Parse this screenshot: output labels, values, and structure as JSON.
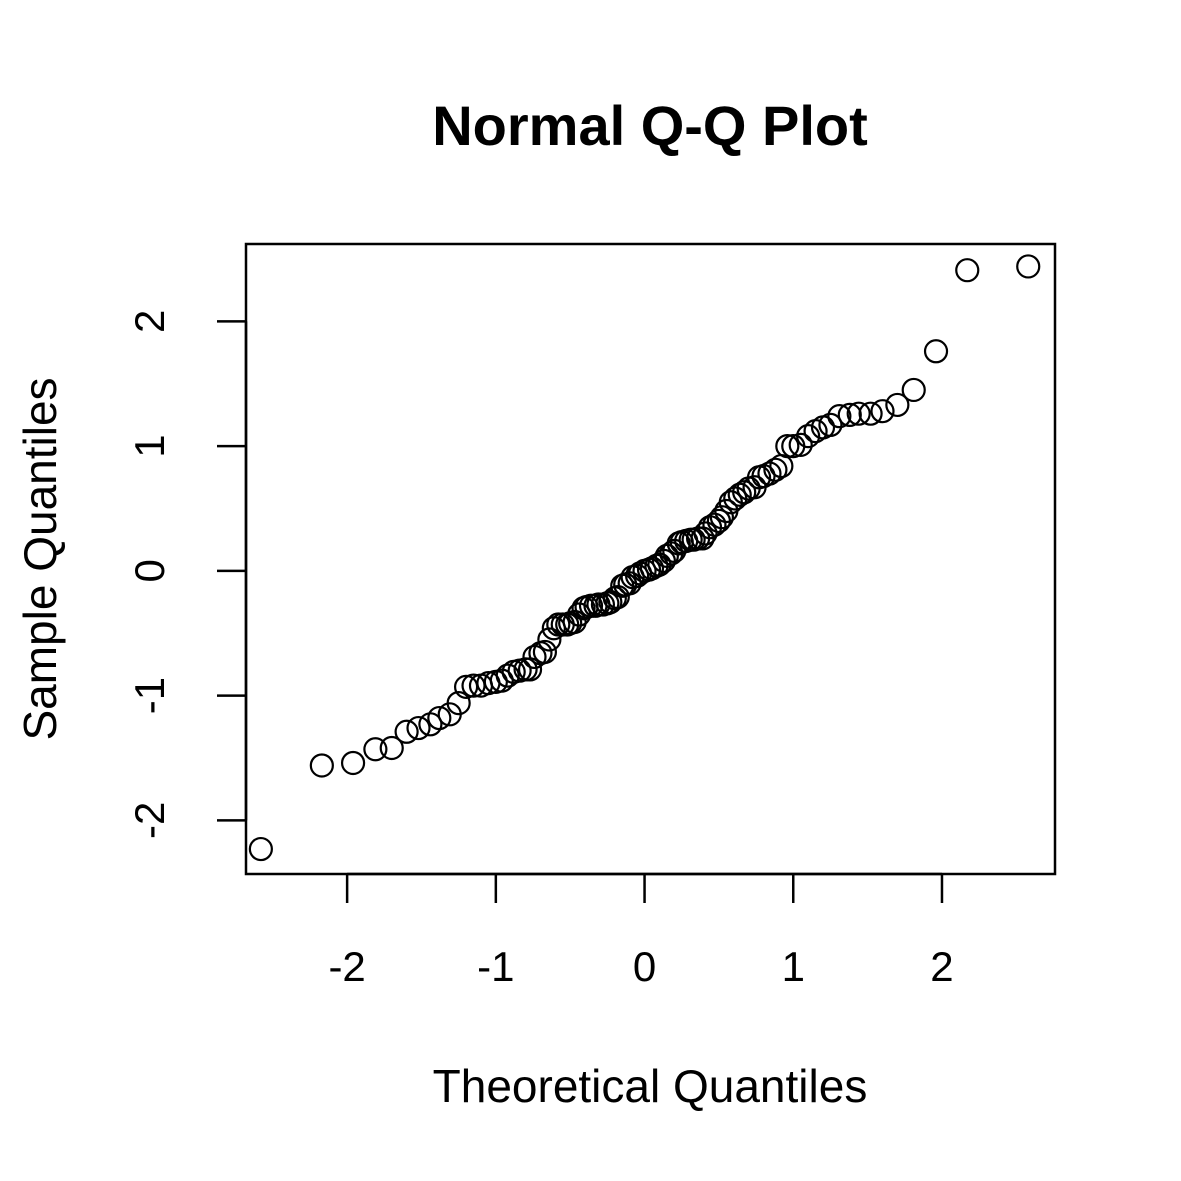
{
  "chart_data": {
    "type": "scatter",
    "title": "Normal Q-Q Plot",
    "xlabel": "Theoretical Quantiles",
    "ylabel": "Sample Quantiles",
    "xlim": [
      -2.68,
      2.76
    ],
    "ylim": [
      -2.43,
      2.62
    ],
    "x_ticks": [
      -2,
      -1,
      0,
      1,
      2
    ],
    "y_ticks": [
      -2,
      -1,
      0,
      1,
      2
    ],
    "x_tick_labels": [
      "-2",
      "-1",
      "0",
      "1",
      "2"
    ],
    "y_tick_labels": [
      "-2",
      "-1",
      "0",
      "1",
      "2"
    ],
    "marker": "open-circle",
    "grid": false,
    "points": [
      [
        -2.58,
        -2.23
      ],
      [
        -2.17,
        -1.56
      ],
      [
        -1.96,
        -1.54
      ],
      [
        -1.81,
        -1.43
      ],
      [
        -1.7,
        -1.42
      ],
      [
        -1.6,
        -1.29
      ],
      [
        -1.52,
        -1.26
      ],
      [
        -1.44,
        -1.23
      ],
      [
        -1.38,
        -1.18
      ],
      [
        -1.31,
        -1.15
      ],
      [
        -1.25,
        -1.06
      ],
      [
        -1.2,
        -0.93
      ],
      [
        -1.15,
        -0.92
      ],
      [
        -1.1,
        -0.92
      ],
      [
        -1.05,
        -0.9
      ],
      [
        -1.0,
        -0.89
      ],
      [
        -0.96,
        -0.88
      ],
      [
        -0.92,
        -0.84
      ],
      [
        -0.88,
        -0.81
      ],
      [
        -0.84,
        -0.8
      ],
      [
        -0.8,
        -0.79
      ],
      [
        -0.77,
        -0.79
      ],
      [
        -0.74,
        -0.69
      ],
      [
        -0.7,
        -0.66
      ],
      [
        -0.67,
        -0.65
      ],
      [
        -0.64,
        -0.55
      ],
      [
        -0.61,
        -0.46
      ],
      [
        -0.58,
        -0.43
      ],
      [
        -0.55,
        -0.43
      ],
      [
        -0.52,
        -0.43
      ],
      [
        -0.5,
        -0.42
      ],
      [
        -0.47,
        -0.41
      ],
      [
        -0.44,
        -0.35
      ],
      [
        -0.41,
        -0.3
      ],
      [
        -0.39,
        -0.29
      ],
      [
        -0.36,
        -0.28
      ],
      [
        -0.33,
        -0.28
      ],
      [
        -0.31,
        -0.27
      ],
      [
        -0.28,
        -0.27
      ],
      [
        -0.25,
        -0.26
      ],
      [
        -0.23,
        -0.25
      ],
      [
        -0.2,
        -0.22
      ],
      [
        -0.18,
        -0.21
      ],
      [
        -0.15,
        -0.12
      ],
      [
        -0.13,
        -0.11
      ],
      [
        -0.1,
        -0.1
      ],
      [
        -0.08,
        -0.05
      ],
      [
        -0.05,
        -0.04
      ],
      [
        -0.03,
        -0.02
      ],
      [
        0.0,
        0.0
      ],
      [
        0.03,
        0.01
      ],
      [
        0.05,
        0.02
      ],
      [
        0.08,
        0.04
      ],
      [
        0.1,
        0.05
      ],
      [
        0.13,
        0.08
      ],
      [
        0.15,
        0.12
      ],
      [
        0.18,
        0.14
      ],
      [
        0.2,
        0.16
      ],
      [
        0.23,
        0.22
      ],
      [
        0.25,
        0.23
      ],
      [
        0.28,
        0.24
      ],
      [
        0.31,
        0.25
      ],
      [
        0.33,
        0.25
      ],
      [
        0.36,
        0.26
      ],
      [
        0.39,
        0.26
      ],
      [
        0.41,
        0.3
      ],
      [
        0.44,
        0.35
      ],
      [
        0.47,
        0.37
      ],
      [
        0.5,
        0.4
      ],
      [
        0.52,
        0.43
      ],
      [
        0.55,
        0.48
      ],
      [
        0.58,
        0.55
      ],
      [
        0.61,
        0.58
      ],
      [
        0.64,
        0.61
      ],
      [
        0.67,
        0.63
      ],
      [
        0.7,
        0.66
      ],
      [
        0.74,
        0.67
      ],
      [
        0.77,
        0.75
      ],
      [
        0.8,
        0.76
      ],
      [
        0.84,
        0.78
      ],
      [
        0.88,
        0.81
      ],
      [
        0.92,
        0.84
      ],
      [
        0.96,
        1.0
      ],
      [
        1.0,
        1.0
      ],
      [
        1.05,
        1.01
      ],
      [
        1.1,
        1.08
      ],
      [
        1.15,
        1.12
      ],
      [
        1.2,
        1.15
      ],
      [
        1.25,
        1.17
      ],
      [
        1.31,
        1.24
      ],
      [
        1.38,
        1.25
      ],
      [
        1.44,
        1.26
      ],
      [
        1.52,
        1.26
      ],
      [
        1.6,
        1.28
      ],
      [
        1.7,
        1.33
      ],
      [
        1.81,
        1.45
      ],
      [
        1.96,
        1.76
      ],
      [
        2.17,
        2.41
      ],
      [
        2.58,
        2.44
      ]
    ]
  }
}
